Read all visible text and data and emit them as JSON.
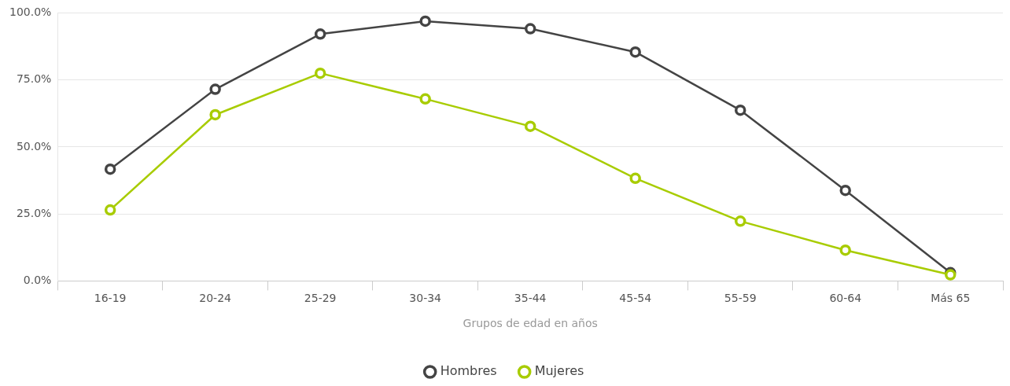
{
  "chart_data": {
    "type": "line",
    "xlabel": "Grupos de edad en años",
    "categories": [
      "16-19",
      "20-24",
      "25-29",
      "30-34",
      "35-44",
      "45-54",
      "55-59",
      "60-64",
      "Más 65"
    ],
    "series": [
      {
        "name": "Hombres",
        "color": "#444444",
        "values": [
          41.7,
          71.5,
          92.1,
          96.9,
          94.1,
          85.4,
          63.7,
          33.8,
          3.1
        ]
      },
      {
        "name": "Mujeres",
        "color": "#a8cc00",
        "values": [
          26.5,
          62,
          77.5,
          67.9,
          57.7,
          38.3,
          22.3,
          11.5,
          2.3
        ]
      }
    ],
    "ylim": [
      0,
      100
    ],
    "yticks": [
      {
        "value": 0,
        "label": "0.0%"
      },
      {
        "value": 25,
        "label": "25.0%"
      },
      {
        "value": 50,
        "label": "50.0%"
      },
      {
        "value": 75,
        "label": "75.0%"
      },
      {
        "value": 100,
        "label": "100.0%"
      }
    ],
    "grid": "y",
    "legend": "bottom",
    "marker": "circle",
    "line_style": "solid"
  }
}
